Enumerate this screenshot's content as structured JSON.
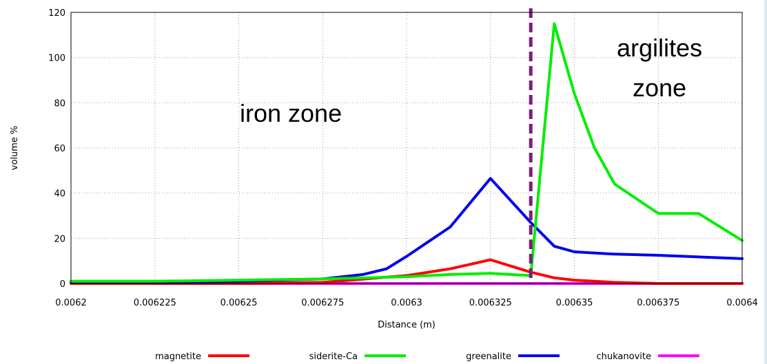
{
  "chart_data": {
    "type": "line",
    "xlabel": "Distance (m)",
    "ylabel": "volume %",
    "xlim": [
      0.0062,
      0.0064
    ],
    "ylim": [
      0,
      120
    ],
    "x_ticks": [
      "0.0062",
      "0.006225",
      "0.00625",
      "0.006275",
      "0.0063",
      "0.006325",
      "0.00635",
      "0.006375",
      "0.0064"
    ],
    "y_ticks": [
      "0",
      "20",
      "40",
      "60",
      "80",
      "100",
      "120"
    ],
    "grid": true,
    "legend_position": "bottom",
    "series": [
      {
        "name": "magnetite",
        "color": "#ff0000",
        "x": [
          0.0062,
          0.006225,
          0.00625,
          0.006275,
          0.0063,
          0.006313,
          0.006325,
          0.006337,
          0.006344,
          0.00635,
          0.006362,
          0.006375,
          0.0064
        ],
        "y": [
          0,
          0,
          0,
          0.5,
          3.5,
          6.5,
          10.5,
          5,
          2.5,
          1.5,
          0.5,
          0,
          0
        ]
      },
      {
        "name": "siderite-Ca",
        "color": "#00ee00",
        "x": [
          0.0062,
          0.006225,
          0.00625,
          0.006275,
          0.0063,
          0.006313,
          0.006325,
          0.006337,
          0.006344,
          0.00635,
          0.006356,
          0.006362,
          0.006375,
          0.006387,
          0.0064
        ],
        "y": [
          1,
          1,
          1.5,
          2,
          3,
          4,
          4.5,
          3.5,
          115,
          84,
          60,
          44,
          31,
          31,
          19
        ]
      },
      {
        "name": "greenalite",
        "color": "#0000ee",
        "x": [
          0.0062,
          0.006225,
          0.00625,
          0.006275,
          0.006287,
          0.006294,
          0.0063,
          0.006313,
          0.006325,
          0.006337,
          0.006344,
          0.00635,
          0.006362,
          0.006375,
          0.0064
        ],
        "y": [
          0.5,
          0.5,
          1,
          2,
          4,
          6.5,
          12,
          25,
          46.5,
          27,
          16.5,
          14,
          13,
          12.5,
          11
        ]
      },
      {
        "name": "chukanovite",
        "color": "#ff00ff",
        "x": [
          0.0062,
          0.0064
        ],
        "y": [
          0,
          0
        ]
      }
    ],
    "annotations": [
      {
        "text": "iron zone"
      },
      {
        "text": "argilites"
      },
      {
        "text": "zone"
      }
    ],
    "divider": {
      "x": 0.006337,
      "color": "#7b1f7b",
      "style": "dashed"
    }
  }
}
